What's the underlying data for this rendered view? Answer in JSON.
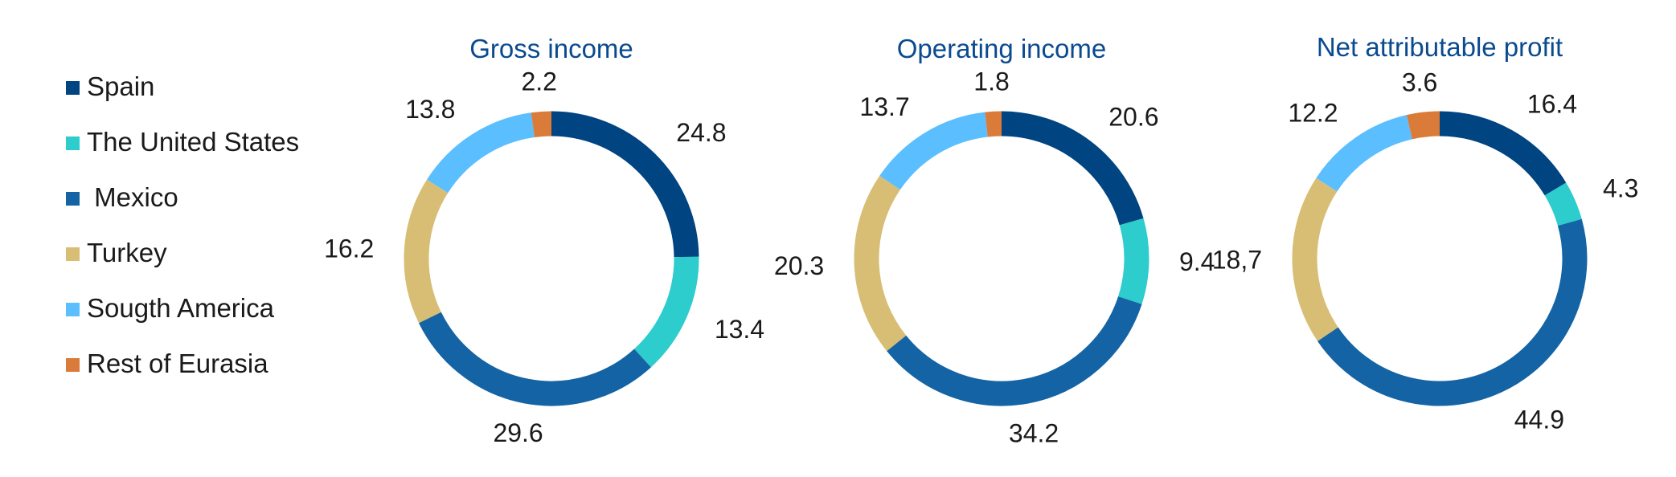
{
  "legend": [
    {
      "label": "Spain",
      "color": "#004481"
    },
    {
      "label": "The United States",
      "color": "#2dcccd"
    },
    {
      "label": " Mexico",
      "color": "#1464a5"
    },
    {
      "label": "Turkey",
      "color": "#d8be75"
    },
    {
      "label": "Sougth America",
      "color": "#5bbeff"
    },
    {
      "label": "Rest of Eurasia",
      "color": "#da7b39"
    }
  ],
  "chart_data": [
    {
      "type": "pie",
      "title": "Gross income",
      "categories": [
        "Spain",
        "The United States",
        "Mexico",
        "Turkey",
        "Sougth America",
        "Rest of Eurasia"
      ],
      "values": [
        24.8,
        13.4,
        29.6,
        16.2,
        13.8,
        2.2
      ],
      "value_labels": [
        "24.8",
        "13.4",
        "29.6",
        "16.2",
        "13.8",
        "2.2"
      ]
    },
    {
      "type": "pie",
      "title": "Operating income",
      "categories": [
        "Spain",
        "The United States",
        "Mexico",
        "Turkey",
        "Sougth America",
        "Rest of Eurasia"
      ],
      "values": [
        20.6,
        9.4,
        34.2,
        20.3,
        13.7,
        1.8
      ],
      "value_labels": [
        "20.6",
        "9.4",
        "34.2",
        "20.3",
        "13.7",
        "1.8"
      ]
    },
    {
      "type": "pie",
      "title": "Net attributable profit",
      "categories": [
        "Spain",
        "The United States",
        "Mexico",
        "Turkey",
        "Sougth America",
        "Rest of Eurasia"
      ],
      "values": [
        16.4,
        4.3,
        44.9,
        18.7,
        12.2,
        3.6
      ],
      "value_labels": [
        "16.4",
        "4.3",
        "44.9",
        "18,7",
        "12.2",
        "3.6"
      ]
    }
  ]
}
